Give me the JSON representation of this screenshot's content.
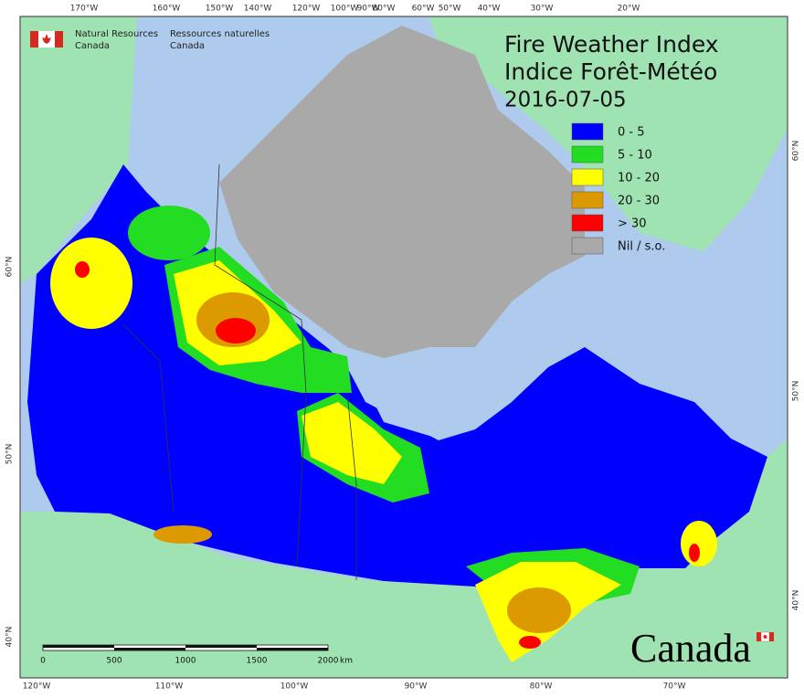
{
  "header": {
    "org_en_line1": "Natural Resources",
    "org_en_line2": "Canada",
    "org_fr_line1": "Ressources naturelles",
    "org_fr_line2": "Canada"
  },
  "title": {
    "line1": "Fire Weather Index",
    "line2": "Indice Forêt-Météo",
    "date": "2016-07-05"
  },
  "legend": [
    {
      "label": "0 - 5",
      "color": "#0000ff"
    },
    {
      "label": "5 - 10",
      "color": "#22dd22"
    },
    {
      "label": "10 - 20",
      "color": "#ffff00"
    },
    {
      "label": "20 - 30",
      "color": "#dd9a00"
    },
    {
      "label": "> 30",
      "color": "#ff0000"
    },
    {
      "label": "Nil / s.o.",
      "color": "#a9a9a9"
    }
  ],
  "graticule": {
    "top": [
      "170°W",
      "160°W",
      "150°W",
      "140°W",
      "120°W",
      "100°W",
      "90°W",
      "80°W",
      "60°W",
      "50°W",
      "40°W",
      "30°W",
      "20°W"
    ],
    "bottom": [
      "120°W",
      "110°W",
      "100°W",
      "90°W",
      "80°W",
      "70°W"
    ],
    "left": [
      "60°N",
      "50°N",
      "40°N"
    ],
    "right": [
      "60°N",
      "50°N",
      "40°N"
    ]
  },
  "scale_bar": {
    "labels": [
      "0",
      "500",
      "1000",
      "1500",
      "2000"
    ],
    "unit": "km"
  },
  "wordmark": "Canada"
}
